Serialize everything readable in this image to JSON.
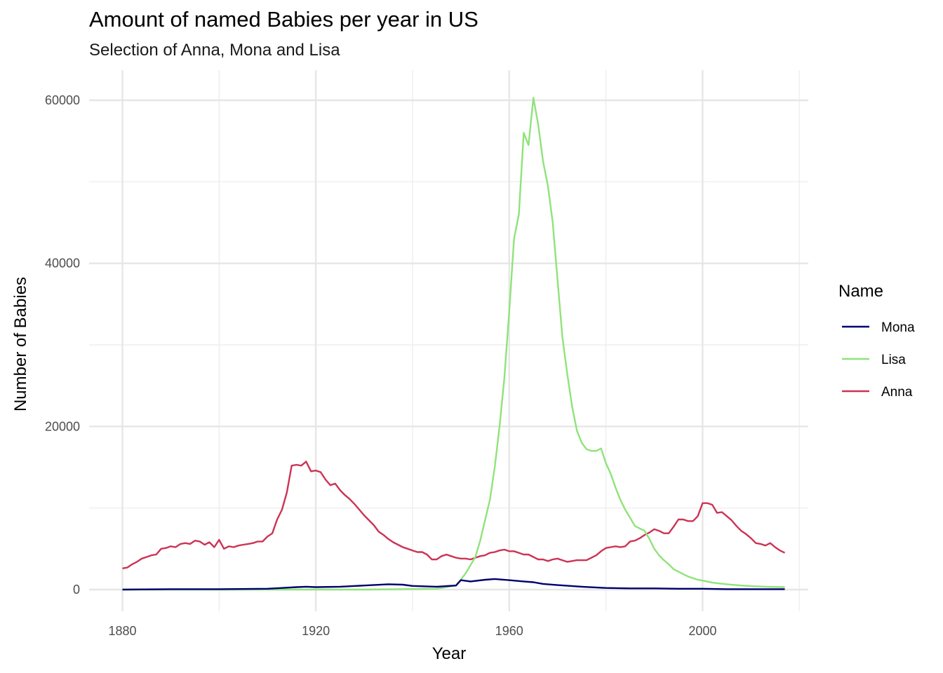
{
  "chart_data": {
    "type": "line",
    "title": "Amount of named Babies per year in US",
    "subtitle": "Selection of Anna, Mona and Lisa",
    "xlabel": "Year",
    "ylabel": "Number of Babies",
    "xlim": [
      1880,
      2017
    ],
    "ylim": [
      0,
      60000
    ],
    "x_ticks": [
      1880,
      1920,
      1960,
      2000
    ],
    "y_ticks": [
      0,
      20000,
      40000,
      60000
    ],
    "x_tick_labels": [
      "1880",
      "1920",
      "1960",
      "2000"
    ],
    "y_tick_labels": [
      "0",
      "20000",
      "40000",
      "60000"
    ],
    "grid": true,
    "legend": {
      "title": "Name",
      "position": "right"
    },
    "series": [
      {
        "name": "Mona",
        "color": "#00006e",
        "points": [
          [
            1880,
            0
          ],
          [
            1890,
            50
          ],
          [
            1900,
            50
          ],
          [
            1910,
            100
          ],
          [
            1913,
            200
          ],
          [
            1916,
            300
          ],
          [
            1918,
            350
          ],
          [
            1920,
            300
          ],
          [
            1925,
            350
          ],
          [
            1930,
            500
          ],
          [
            1935,
            650
          ],
          [
            1938,
            600
          ],
          [
            1940,
            450
          ],
          [
            1945,
            350
          ],
          [
            1949,
            500
          ],
          [
            1950,
            1150
          ],
          [
            1952,
            1000
          ],
          [
            1955,
            1200
          ],
          [
            1957,
            1300
          ],
          [
            1960,
            1150
          ],
          [
            1963,
            1000
          ],
          [
            1965,
            900
          ],
          [
            1967,
            700
          ],
          [
            1970,
            550
          ],
          [
            1975,
            350
          ],
          [
            1980,
            200
          ],
          [
            1985,
            150
          ],
          [
            1990,
            150
          ],
          [
            1995,
            100
          ],
          [
            2000,
            100
          ],
          [
            2005,
            50
          ],
          [
            2010,
            50
          ],
          [
            2017,
            50
          ]
        ]
      },
      {
        "name": "Lisa",
        "color": "#8fe37a",
        "points": [
          [
            1880,
            0
          ],
          [
            1910,
            0
          ],
          [
            1930,
            0
          ],
          [
            1945,
            100
          ],
          [
            1949,
            500
          ],
          [
            1950,
            1200
          ],
          [
            1951,
            2000
          ],
          [
            1952,
            3000
          ],
          [
            1953,
            4000
          ],
          [
            1954,
            6000
          ],
          [
            1955,
            8500
          ],
          [
            1956,
            11000
          ],
          [
            1957,
            15000
          ],
          [
            1958,
            20000
          ],
          [
            1959,
            26000
          ],
          [
            1960,
            34000
          ],
          [
            1961,
            43000
          ],
          [
            1962,
            46000
          ],
          [
            1963,
            56000
          ],
          [
            1964,
            54500
          ],
          [
            1965,
            60300
          ],
          [
            1966,
            57000
          ],
          [
            1967,
            52500
          ],
          [
            1968,
            49500
          ],
          [
            1969,
            45000
          ],
          [
            1970,
            38000
          ],
          [
            1971,
            31000
          ],
          [
            1972,
            26500
          ],
          [
            1973,
            22500
          ],
          [
            1974,
            19500
          ],
          [
            1975,
            18000
          ],
          [
            1976,
            17200
          ],
          [
            1977,
            17000
          ],
          [
            1978,
            17000
          ],
          [
            1979,
            17300
          ],
          [
            1980,
            15500
          ],
          [
            1981,
            14200
          ],
          [
            1982,
            12500
          ],
          [
            1983,
            11000
          ],
          [
            1984,
            9800
          ],
          [
            1985,
            8800
          ],
          [
            1986,
            7800
          ],
          [
            1987,
            7500
          ],
          [
            1988,
            7200
          ],
          [
            1989,
            6200
          ],
          [
            1990,
            5000
          ],
          [
            1991,
            4200
          ],
          [
            1992,
            3600
          ],
          [
            1993,
            3100
          ],
          [
            1994,
            2500
          ],
          [
            1995,
            2200
          ],
          [
            1996,
            1900
          ],
          [
            1997,
            1600
          ],
          [
            1998,
            1400
          ],
          [
            1999,
            1200
          ],
          [
            2000,
            1100
          ],
          [
            2002,
            850
          ],
          [
            2005,
            650
          ],
          [
            2008,
            500
          ],
          [
            2010,
            420
          ],
          [
            2013,
            350
          ],
          [
            2017,
            300
          ]
        ]
      },
      {
        "name": "Anna",
        "color": "#cc3355",
        "points": [
          [
            1880,
            2600
          ],
          [
            1881,
            2700
          ],
          [
            1882,
            3100
          ],
          [
            1883,
            3400
          ],
          [
            1884,
            3800
          ],
          [
            1885,
            4000
          ],
          [
            1886,
            4200
          ],
          [
            1887,
            4300
          ],
          [
            1888,
            5000
          ],
          [
            1889,
            5100
          ],
          [
            1890,
            5300
          ],
          [
            1891,
            5200
          ],
          [
            1892,
            5600
          ],
          [
            1893,
            5700
          ],
          [
            1894,
            5600
          ],
          [
            1895,
            6000
          ],
          [
            1896,
            5900
          ],
          [
            1897,
            5500
          ],
          [
            1898,
            5800
          ],
          [
            1899,
            5200
          ],
          [
            1900,
            6100
          ],
          [
            1901,
            5000
          ],
          [
            1902,
            5300
          ],
          [
            1903,
            5200
          ],
          [
            1904,
            5400
          ],
          [
            1905,
            5500
          ],
          [
            1906,
            5600
          ],
          [
            1907,
            5700
          ],
          [
            1908,
            5900
          ],
          [
            1909,
            5900
          ],
          [
            1910,
            6500
          ],
          [
            1911,
            6900
          ],
          [
            1912,
            8600
          ],
          [
            1913,
            9800
          ],
          [
            1914,
            11900
          ],
          [
            1915,
            15200
          ],
          [
            1916,
            15300
          ],
          [
            1917,
            15200
          ],
          [
            1918,
            15700
          ],
          [
            1919,
            14500
          ],
          [
            1920,
            14600
          ],
          [
            1921,
            14400
          ],
          [
            1922,
            13500
          ],
          [
            1923,
            12800
          ],
          [
            1924,
            13000
          ],
          [
            1925,
            12200
          ],
          [
            1926,
            11600
          ],
          [
            1927,
            11100
          ],
          [
            1928,
            10500
          ],
          [
            1929,
            9800
          ],
          [
            1930,
            9100
          ],
          [
            1931,
            8500
          ],
          [
            1932,
            7900
          ],
          [
            1933,
            7100
          ],
          [
            1934,
            6700
          ],
          [
            1935,
            6200
          ],
          [
            1936,
            5800
          ],
          [
            1937,
            5500
          ],
          [
            1938,
            5200
          ],
          [
            1939,
            5000
          ],
          [
            1940,
            4800
          ],
          [
            1941,
            4600
          ],
          [
            1942,
            4600
          ],
          [
            1943,
            4300
          ],
          [
            1944,
            3700
          ],
          [
            1945,
            3700
          ],
          [
            1946,
            4100
          ],
          [
            1947,
            4300
          ],
          [
            1948,
            4100
          ],
          [
            1949,
            3900
          ],
          [
            1950,
            3800
          ],
          [
            1951,
            3800
          ],
          [
            1952,
            3700
          ],
          [
            1953,
            3900
          ],
          [
            1954,
            4100
          ],
          [
            1955,
            4200
          ],
          [
            1956,
            4500
          ],
          [
            1957,
            4600
          ],
          [
            1958,
            4800
          ],
          [
            1959,
            4900
          ],
          [
            1960,
            4700
          ],
          [
            1961,
            4700
          ],
          [
            1962,
            4500
          ],
          [
            1963,
            4300
          ],
          [
            1964,
            4300
          ],
          [
            1965,
            4000
          ],
          [
            1966,
            3700
          ],
          [
            1967,
            3700
          ],
          [
            1968,
            3500
          ],
          [
            1969,
            3700
          ],
          [
            1970,
            3800
          ],
          [
            1971,
            3600
          ],
          [
            1972,
            3400
          ],
          [
            1973,
            3500
          ],
          [
            1974,
            3600
          ],
          [
            1975,
            3600
          ],
          [
            1976,
            3600
          ],
          [
            1977,
            3900
          ],
          [
            1978,
            4200
          ],
          [
            1979,
            4700
          ],
          [
            1980,
            5100
          ],
          [
            1981,
            5200
          ],
          [
            1982,
            5300
          ],
          [
            1983,
            5200
          ],
          [
            1984,
            5300
          ],
          [
            1985,
            5900
          ],
          [
            1986,
            6000
          ],
          [
            1987,
            6300
          ],
          [
            1988,
            6700
          ],
          [
            1989,
            7000
          ],
          [
            1990,
            7400
          ],
          [
            1991,
            7200
          ],
          [
            1992,
            6900
          ],
          [
            1993,
            6900
          ],
          [
            1994,
            7700
          ],
          [
            1995,
            8600
          ],
          [
            1996,
            8600
          ],
          [
            1997,
            8400
          ],
          [
            1998,
            8400
          ],
          [
            1999,
            9000
          ],
          [
            2000,
            10600
          ],
          [
            2001,
            10600
          ],
          [
            2002,
            10400
          ],
          [
            2003,
            9400
          ],
          [
            2004,
            9500
          ],
          [
            2005,
            9000
          ],
          [
            2006,
            8500
          ],
          [
            2007,
            7800
          ],
          [
            2008,
            7200
          ],
          [
            2009,
            6800
          ],
          [
            2010,
            6300
          ],
          [
            2011,
            5700
          ],
          [
            2012,
            5600
          ],
          [
            2013,
            5400
          ],
          [
            2014,
            5700
          ],
          [
            2015,
            5200
          ],
          [
            2016,
            4800
          ],
          [
            2017,
            4500
          ]
        ]
      }
    ]
  }
}
